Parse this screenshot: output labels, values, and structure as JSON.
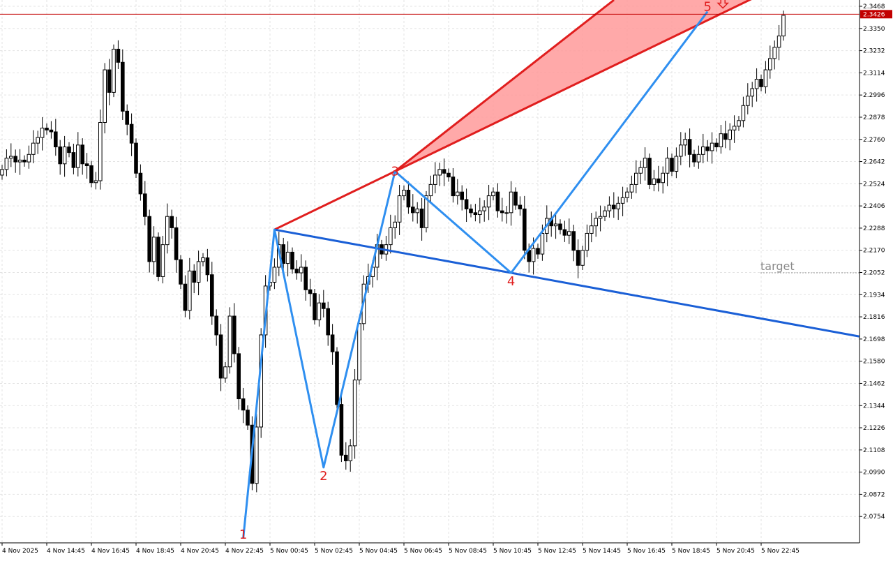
{
  "chart_data": {
    "type": "candlestick",
    "ylim": [
      2.0636,
      2.3468
    ],
    "y_ticks": [
      "2.3468",
      "2.3350",
      "2.3232",
      "2.3114",
      "2.2996",
      "2.2878",
      "2.2760",
      "2.2642",
      "2.2524",
      "2.2406",
      "2.2288",
      "2.2170",
      "2.2052",
      "2.1934",
      "2.1816",
      "2.1698",
      "2.1580",
      "2.1462",
      "2.1344",
      "2.1226",
      "2.1108",
      "2.0990",
      "2.0872",
      "2.0754"
    ],
    "x_ticks": [
      "4 Nov 2025",
      "4 Nov 14:45",
      "4 Nov 16:45",
      "4 Nov 18:45",
      "4 Nov 20:45",
      "4 Nov 22:45",
      "5 Nov 00:45",
      "5 Nov 02:45",
      "5 Nov 04:45",
      "5 Nov 06:45",
      "5 Nov 08:45",
      "5 Nov 10:45",
      "5 Nov 12:45",
      "5 Nov 14:45",
      "5 Nov 16:45",
      "5 Nov 18:45",
      "5 Nov 20:45",
      "5 Nov 22:45"
    ],
    "candle_count": 176,
    "current_price": "2.3426",
    "candles_close": [
      2.26,
      2.266,
      2.267,
      2.264,
      2.265,
      2.264,
      2.268,
      2.274,
      2.277,
      2.282,
      2.281,
      2.28,
      2.272,
      2.263,
      2.272,
      2.269,
      2.261,
      2.273,
      2.263,
      2.262,
      2.253,
      2.254,
      2.285,
      2.313,
      2.301,
      2.324,
      2.317,
      2.291,
      2.284,
      2.274,
      2.258,
      2.247,
      2.235,
      2.211,
      2.224,
      2.203,
      2.22,
      2.235,
      2.229,
      2.212,
      2.199,
      2.185,
      2.206,
      2.2,
      2.211,
      2.213,
      2.204,
      2.182,
      2.172,
      2.149,
      2.155,
      2.182,
      2.162,
      2.138,
      2.132,
      2.124,
      2.093,
      2.123,
      2.172,
      2.198,
      2.2,
      2.208,
      2.22,
      2.21,
      2.216,
      2.207,
      2.205,
      2.208,
      2.196,
      2.194,
      2.18,
      2.189,
      2.186,
      2.172,
      2.163,
      2.135,
      2.108,
      2.105,
      2.113,
      2.148,
      2.178,
      2.199,
      2.203,
      2.208,
      2.22,
      2.215,
      2.22,
      2.229,
      2.232,
      2.246,
      2.249,
      2.24,
      2.237,
      2.239,
      2.229,
      2.246,
      2.252,
      2.257,
      2.26,
      2.258,
      2.256,
      2.246,
      2.248,
      2.244,
      2.239,
      2.237,
      2.236,
      2.238,
      2.24,
      2.246,
      2.248,
      2.238,
      2.237,
      2.237,
      2.248,
      2.241,
      2.239,
      2.217,
      2.211,
      2.218,
      2.215,
      2.226,
      2.234,
      2.23,
      2.231,
      2.228,
      2.225,
      2.227,
      2.217,
      2.209,
      2.217,
      2.226,
      2.23,
      2.234,
      2.235,
      2.238,
      2.241,
      2.239,
      2.242,
      2.245,
      2.248,
      2.252,
      2.258,
      2.261,
      2.266,
      2.252,
      2.255,
      2.253,
      2.258,
      2.266,
      2.259,
      2.267,
      2.273,
      2.276,
      2.268,
      2.264,
      2.268,
      2.272,
      2.27,
      2.274,
      2.272,
      2.279,
      2.276,
      2.281,
      2.283,
      2.286,
      2.294,
      2.299,
      2.303,
      2.308,
      2.304,
      2.313,
      2.319,
      2.325,
      2.331,
      2.342
    ],
    "pattern_points": [
      {
        "label": "1",
        "index": 54,
        "price": 2.0636
      },
      {
        "label": "",
        "index": 61,
        "price": 2.228
      },
      {
        "label": "2",
        "index": 72,
        "price": 2.1015
      },
      {
        "label": "3",
        "index": 88,
        "price": 2.259
      },
      {
        "label": "4",
        "index": 114,
        "price": 2.205
      },
      {
        "label": "5",
        "index": 158,
        "price": 2.344
      }
    ],
    "labels_shown": [
      "2",
      "3",
      "4",
      "5"
    ],
    "target_label": "target",
    "target_price": 2.205,
    "colors": {
      "bull": "#ffffff",
      "bear": "#000000",
      "wave": "#2f8ff0",
      "lower_line": "#1a5fd6",
      "upper_line": "#e01e1e",
      "fill": "#ff9a9a",
      "price_tag": "#c20000",
      "grid": "#e3e3e3"
    }
  }
}
